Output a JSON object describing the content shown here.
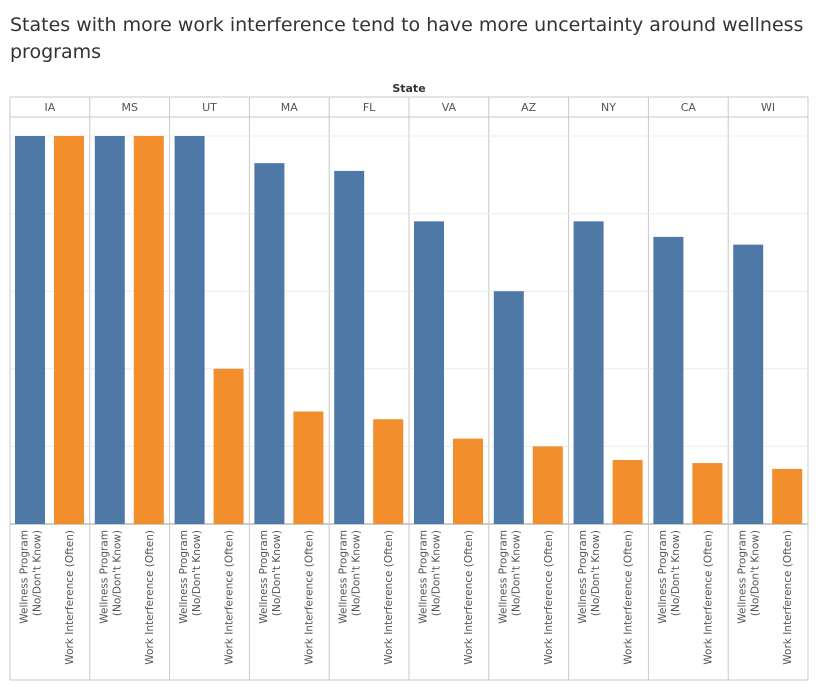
{
  "chart_data": {
    "type": "bar",
    "title": "States with more work interference tend to have more uncertainty around wellness programs",
    "column_header": "State",
    "categories": [
      "IA",
      "MS",
      "UT",
      "MA",
      "FL",
      "VA",
      "AZ",
      "NY",
      "CA",
      "WI"
    ],
    "measure_labels": [
      [
        "Wellness Program",
        "(No/Don't Know)"
      ],
      [
        "Work Interference (Often)"
      ]
    ],
    "series": [
      {
        "name": "Wellness Program (No/Don't Know)",
        "color": "#4e79a7",
        "values": [
          1.0,
          1.0,
          1.0,
          0.93,
          0.91,
          0.78,
          0.6,
          0.78,
          0.74,
          0.72
        ]
      },
      {
        "name": "Work Interference (Often)",
        "color": "#f28e2b",
        "values": [
          1.0,
          1.0,
          0.4,
          0.29,
          0.27,
          0.22,
          0.2,
          0.165,
          0.157,
          0.142
        ]
      }
    ],
    "ylim": [
      0,
      1.0
    ],
    "grid": true,
    "xlabel": "",
    "ylabel": ""
  }
}
